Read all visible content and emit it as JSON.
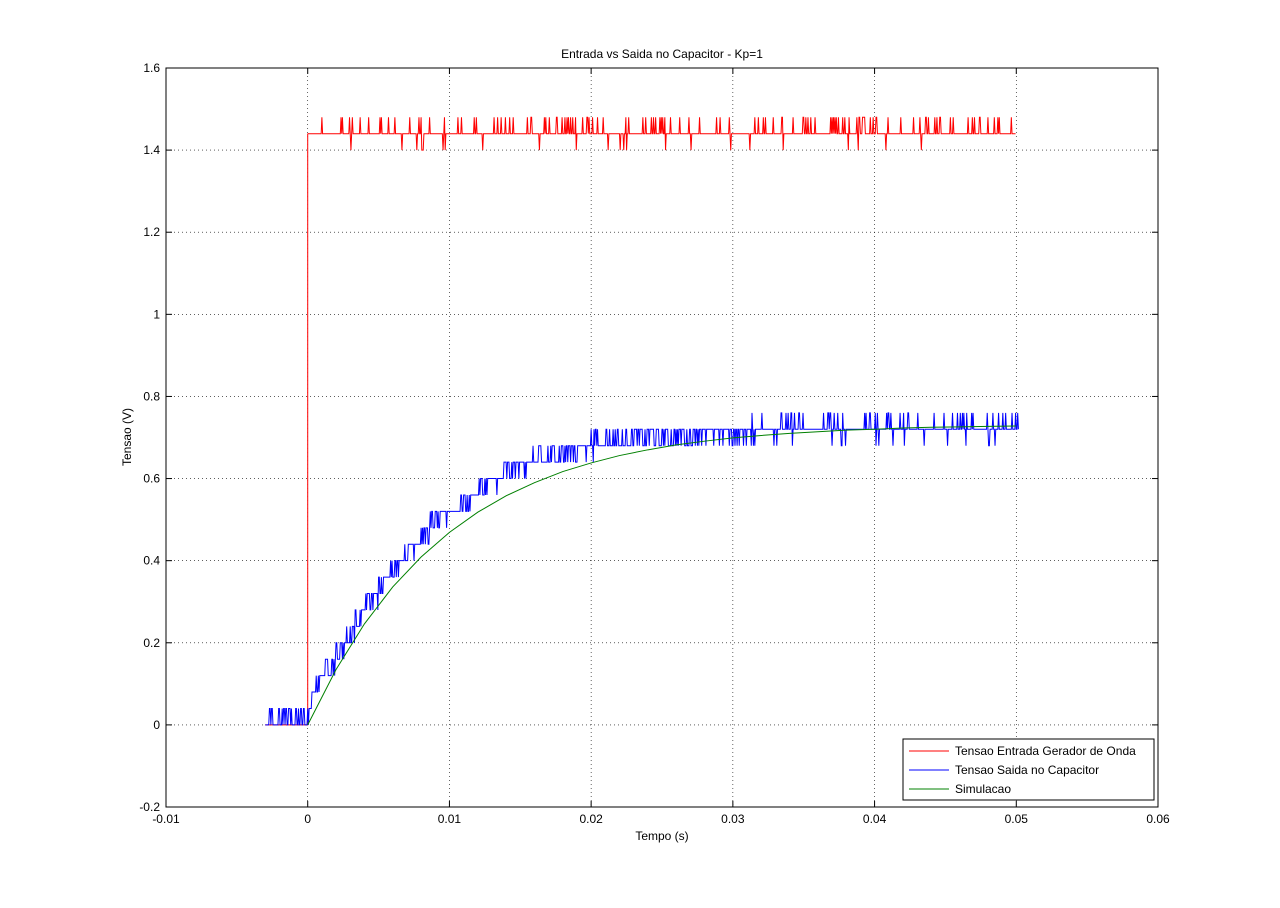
{
  "chart_data": {
    "type": "line",
    "title": "Entrada vs Saida no Capacitor - Kp=1",
    "xlabel": "Tempo (s)",
    "ylabel": "Tensao (V)",
    "xlim": [
      -0.01,
      0.06
    ],
    "ylim": [
      -0.2,
      1.6
    ],
    "xticks": [
      -0.01,
      0,
      0.01,
      0.02,
      0.03,
      0.04,
      0.05,
      0.06
    ],
    "xtick_labels": [
      "-0.01",
      "0",
      "0.01",
      "0.02",
      "0.03",
      "0.04",
      "0.05",
      "0.06"
    ],
    "yticks": [
      -0.2,
      0,
      0.2,
      0.4,
      0.6,
      0.8,
      1,
      1.2,
      1.4,
      1.6
    ],
    "ytick_labels": [
      "-0.2",
      "0",
      "0.2",
      "0.4",
      "0.6",
      "0.8",
      "1",
      "1.2",
      "1.4",
      "1.6"
    ],
    "grid": true,
    "legend_position": "bottom-right",
    "series": [
      {
        "name": "Tensao Entrada Gerador de Onda",
        "color": "#ff0000",
        "description_of_shape": "step",
        "x": [
          -0.003,
          0.0,
          0.0,
          0.0005,
          0.05
        ],
        "y": [
          0.0,
          0.0,
          1.44,
          1.44,
          1.44
        ],
        "noise_levels": [
          1.4,
          1.44,
          1.48
        ]
      },
      {
        "name": "Tensao Saida no Capacitor",
        "color": "#0000ff",
        "x": [
          -0.003,
          0.0,
          0.0005,
          0.001,
          0.002,
          0.003,
          0.004,
          0.005,
          0.006,
          0.007,
          0.008,
          0.009,
          0.01,
          0.011,
          0.012,
          0.013,
          0.014,
          0.015,
          0.016,
          0.017,
          0.018,
          0.019,
          0.02,
          0.022,
          0.024,
          0.026,
          0.028,
          0.03,
          0.032,
          0.034,
          0.036,
          0.038,
          0.04,
          0.042,
          0.044,
          0.046,
          0.048,
          0.05
        ],
        "y": [
          0.0,
          0.0,
          0.08,
          0.12,
          0.16,
          0.22,
          0.28,
          0.32,
          0.38,
          0.42,
          0.46,
          0.49,
          0.52,
          0.54,
          0.57,
          0.59,
          0.61,
          0.63,
          0.64,
          0.65,
          0.66,
          0.67,
          0.68,
          0.69,
          0.7,
          0.7,
          0.71,
          0.71,
          0.72,
          0.72,
          0.72,
          0.72,
          0.72,
          0.72,
          0.72,
          0.72,
          0.72,
          0.72
        ],
        "quantization_step": 0.04
      },
      {
        "name": "Simulacao",
        "color": "#008000",
        "x": [
          0.0,
          0.002,
          0.004,
          0.006,
          0.008,
          0.01,
          0.012,
          0.014,
          0.016,
          0.018,
          0.02,
          0.022,
          0.024,
          0.026,
          0.028,
          0.03,
          0.032,
          0.034,
          0.036,
          0.038,
          0.04,
          0.042,
          0.044,
          0.046,
          0.048,
          0.05
        ],
        "y": [
          0.0,
          0.135,
          0.246,
          0.336,
          0.409,
          0.469,
          0.518,
          0.558,
          0.59,
          0.617,
          0.638,
          0.656,
          0.67,
          0.682,
          0.691,
          0.699,
          0.705,
          0.71,
          0.714,
          0.718,
          0.72,
          0.723,
          0.725,
          0.726,
          0.727,
          0.728
        ]
      }
    ]
  }
}
